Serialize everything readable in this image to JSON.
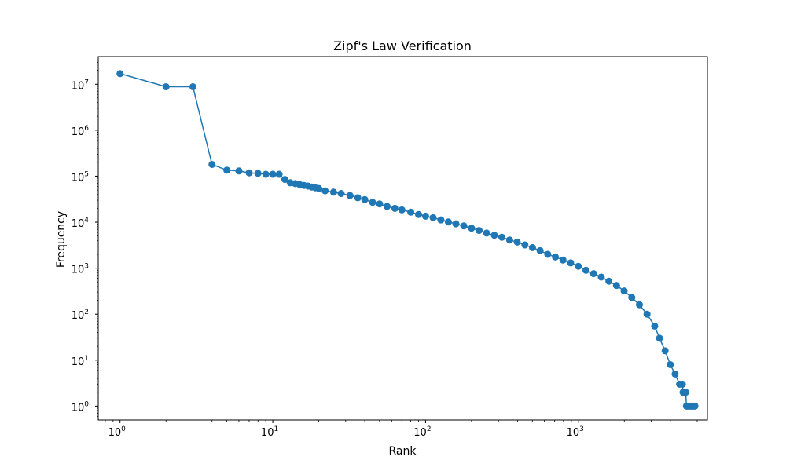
{
  "chart_data": {
    "type": "line",
    "title": "Zipf's Law Verification",
    "xlabel": "Rank",
    "ylabel": "Frequency",
    "xscale": "log",
    "yscale": "log",
    "xlim": [
      0.72,
      7000
    ],
    "ylim": [
      0.5,
      40000000
    ],
    "grid": false,
    "marker": "circle",
    "color": "#1f77b4",
    "x_ticks": [
      {
        "value": 1,
        "base": "10",
        "exp": "0"
      },
      {
        "value": 10,
        "base": "10",
        "exp": "1"
      },
      {
        "value": 100,
        "base": "10",
        "exp": "2"
      },
      {
        "value": 1000,
        "base": "10",
        "exp": "3"
      }
    ],
    "y_ticks": [
      {
        "value": 1,
        "base": "10",
        "exp": "0"
      },
      {
        "value": 10,
        "base": "10",
        "exp": "1"
      },
      {
        "value": 100,
        "base": "10",
        "exp": "2"
      },
      {
        "value": 1000,
        "base": "10",
        "exp": "3"
      },
      {
        "value": 10000,
        "base": "10",
        "exp": "4"
      },
      {
        "value": 100000,
        "base": "10",
        "exp": "5"
      },
      {
        "value": 1000000,
        "base": "10",
        "exp": "6"
      },
      {
        "value": 10000000,
        "base": "10",
        "exp": "7"
      }
    ],
    "series": [
      {
        "x": [
          1,
          2,
          3,
          4,
          5,
          6,
          7,
          8,
          9,
          10,
          11,
          12,
          13,
          14,
          15,
          16,
          17,
          18,
          19,
          20,
          22,
          25,
          28,
          32,
          36,
          40,
          45,
          50,
          56,
          63,
          70,
          80,
          90,
          100,
          112,
          126,
          141,
          158,
          178,
          200,
          224,
          251,
          282,
          316,
          355,
          398,
          447,
          501,
          562,
          631,
          708,
          794,
          891,
          1000,
          1122,
          1259,
          1413,
          1585,
          1778,
          1995,
          2239,
          2512,
          2818,
          3162,
          3400,
          3700,
          4000,
          4300,
          4600,
          4800,
          4850,
          4950,
          5050,
          5100,
          5200,
          5300,
          5400,
          5500,
          5600,
          5700,
          5800
        ],
        "y": [
          17000000,
          8800000,
          8800000,
          180000,
          135000,
          130000,
          118000,
          115000,
          110000,
          110000,
          110000,
          85000,
          72000,
          69000,
          66000,
          63000,
          61000,
          58000,
          56000,
          54000,
          48000,
          45000,
          42000,
          38000,
          34000,
          31000,
          27000,
          25000,
          22000,
          20000,
          18500,
          16500,
          14700,
          13500,
          12500,
          11200,
          10100,
          9200,
          8300,
          7400,
          6600,
          5800,
          5200,
          4700,
          4100,
          3700,
          3200,
          2800,
          2400,
          2000,
          1750,
          1500,
          1300,
          1100,
          900,
          760,
          640,
          520,
          420,
          320,
          230,
          160,
          100,
          55,
          30,
          16,
          8,
          5,
          3,
          3,
          2,
          2,
          2,
          1,
          1,
          1,
          1,
          1,
          1,
          1,
          1
        ]
      }
    ]
  }
}
